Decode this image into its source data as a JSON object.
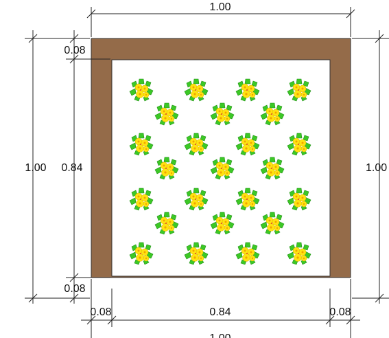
{
  "dimensions": {
    "top_width": "1.00",
    "bottom_width": "1.00",
    "left_height": "1.00",
    "right_height": "1.00",
    "inner_height": "0.84",
    "inner_width": "0.84",
    "top_border": "0.08",
    "bottom_border": "0.08",
    "left_border": "0.08",
    "right_border": "0.08"
  },
  "colors": {
    "frame": "#946b49",
    "canvas": "#ffffff",
    "leaf": "#3cc826",
    "leaf_dark": "#1f8e14",
    "flower": "#ffe312",
    "flower_center": "#f2a400",
    "line": "#222222"
  },
  "pattern": {
    "motif": "yellow-flower-bouquet-icon",
    "grid": [
      4,
      4
    ],
    "offset_grid": [
      3,
      3
    ]
  }
}
